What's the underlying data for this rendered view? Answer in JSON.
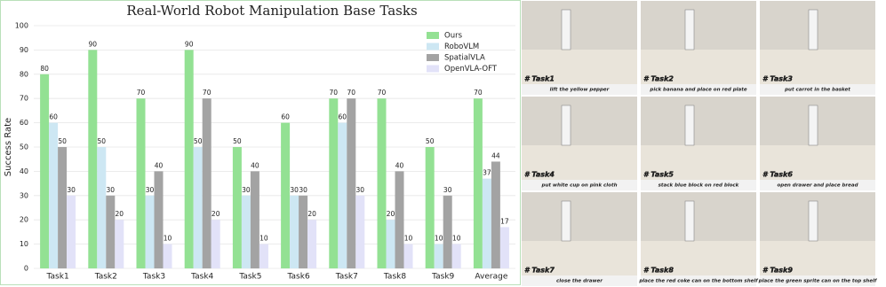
{
  "chart_data": {
    "type": "bar",
    "title": "Real-World Robot Manipulation Base Tasks",
    "y_label": "Success Rate",
    "categories": [
      "Task1",
      "Task2",
      "Task3",
      "Task4",
      "Task5",
      "Task6",
      "Task7",
      "Task8",
      "Task9",
      "Average"
    ],
    "series": [
      {
        "name": "Ours",
        "color": "#93e193",
        "values": [
          80,
          90,
          70,
          90,
          50,
          60,
          70,
          70,
          50,
          70
        ]
      },
      {
        "name": "RoboVLM",
        "color": "#cde7f3",
        "values": [
          60,
          50,
          30,
          50,
          30,
          30,
          60,
          20,
          10,
          37
        ]
      },
      {
        "name": "SpatialVLA",
        "color": "#a3a3a3",
        "values": [
          50,
          30,
          40,
          70,
          40,
          30,
          70,
          40,
          30,
          44
        ]
      },
      {
        "name": "OpenVLA-OFT",
        "color": "#e2e2f8",
        "values": [
          30,
          20,
          10,
          20,
          10,
          20,
          30,
          10,
          10,
          17
        ]
      }
    ],
    "ylim": [
      0,
      100
    ],
    "yticks": [
      0,
      10,
      20,
      30,
      40,
      50,
      60,
      70,
      80,
      90,
      100
    ],
    "grid": true,
    "legend": "upper right"
  },
  "panels": [
    {
      "tag": "# Task1",
      "caption": "lift the yellow pepper"
    },
    {
      "tag": "# Task2",
      "caption": "pick banana and place on red plate"
    },
    {
      "tag": "# Task3",
      "caption": "put carrot in the basket"
    },
    {
      "tag": "# Task4",
      "caption": "put white cup on pink cloth"
    },
    {
      "tag": "# Task5",
      "caption": "stack blue block on red block"
    },
    {
      "tag": "# Task6",
      "caption": "open drawer and place bread"
    },
    {
      "tag": "# Task7",
      "caption": "close the drawer"
    },
    {
      "tag": "# Task8",
      "caption": "place the red coke can on the bottom shelf"
    },
    {
      "tag": "# Task9",
      "caption": "place the green sprite can on the top shelf"
    }
  ]
}
